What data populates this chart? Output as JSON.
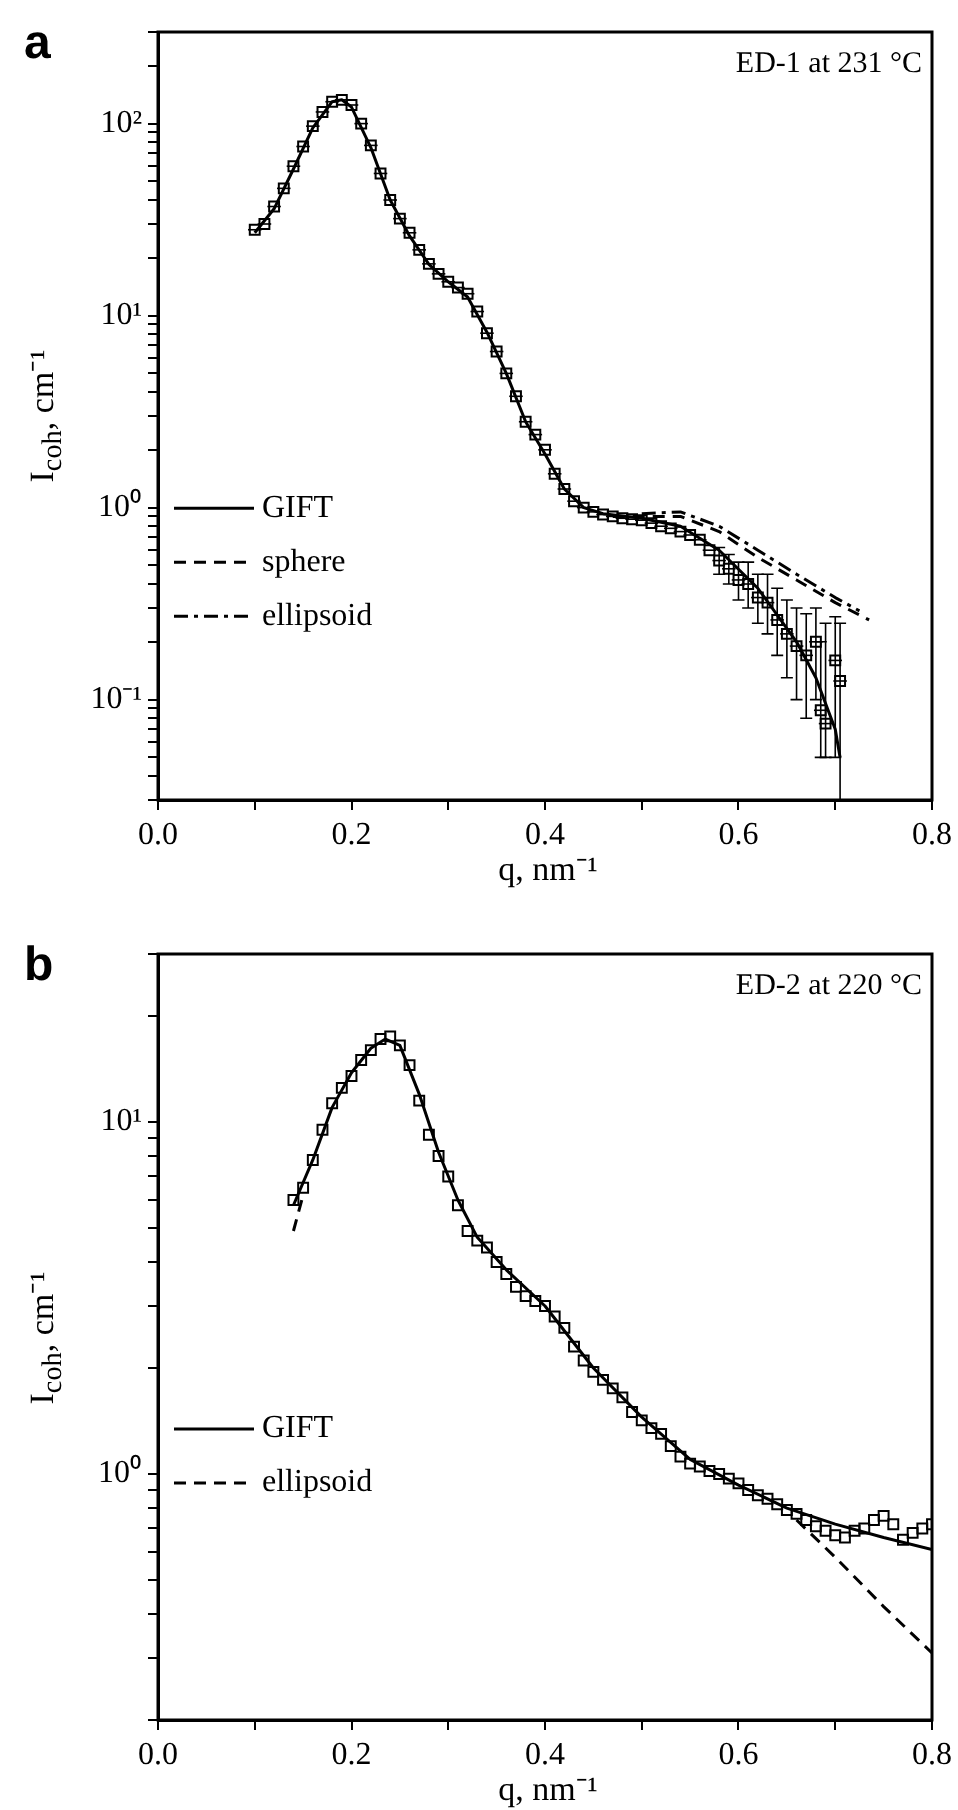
{
  "chart_data": [
    {
      "type": "scatter",
      "title": "a",
      "annotations": [
        "ED-1 at 231 °C"
      ],
      "xlabel": "q, nm⁻¹",
      "ylabel": "I$_{coh}$, cm⁻¹",
      "xlim": [
        0,
        0.8
      ],
      "xticks": [
        {
          "value": 0,
          "label": "0.0"
        },
        {
          "value": 0.1,
          "label": null
        },
        0.2,
        {
          "value": 0.3,
          "label": null
        },
        0.4,
        {
          "value": 0.5,
          "label": null
        },
        0.6,
        {
          "value": 0.7,
          "label": null
        },
        0.8
      ],
      "ylim": [
        0.03,
        300
      ],
      "log": true,
      "yticks": [
        {
          "value": 0.03,
          "label": null
        },
        {
          "value": 0.04,
          "label": null
        },
        {
          "value": 0.05,
          "label": null
        },
        {
          "value": 0.06,
          "label": null
        },
        {
          "value": 0.07,
          "label": null
        },
        {
          "value": 0.08,
          "label": null
        },
        {
          "value": 0.09,
          "label": null
        },
        {
          "value": 0.1,
          "label": "10⁻¹"
        },
        {
          "value": 0.2,
          "label": null
        },
        {
          "value": 0.3,
          "label": null
        },
        {
          "value": 0.4,
          "label": null
        },
        {
          "value": 0.5,
          "label": null
        },
        {
          "value": 0.6,
          "label": null
        },
        {
          "value": 0.7,
          "label": null
        },
        {
          "value": 0.8,
          "label": null
        },
        {
          "value": 0.9,
          "label": null
        },
        {
          "value": 1,
          "label": "10⁰"
        },
        {
          "value": 2,
          "label": null
        },
        {
          "value": 3,
          "label": null
        },
        {
          "value": 4,
          "label": null
        },
        {
          "value": 5,
          "label": null
        },
        {
          "value": 6,
          "label": null
        },
        {
          "value": 7,
          "label": null
        },
        {
          "value": 8,
          "label": null
        },
        {
          "value": 9,
          "label": null
        },
        {
          "value": 10,
          "label": "10¹"
        },
        {
          "value": 20,
          "label": null
        },
        {
          "value": 30,
          "label": null
        },
        {
          "value": 40,
          "label": null
        },
        {
          "value": 50,
          "label": null
        },
        {
          "value": 60,
          "label": null
        },
        {
          "value": 70,
          "label": null
        },
        {
          "value": 80,
          "label": null
        },
        {
          "value": 90,
          "label": null
        },
        {
          "value": 100,
          "label": "10²"
        },
        {
          "value": 200,
          "label": null
        },
        {
          "value": 300,
          "label": null
        }
      ],
      "grid": false,
      "legend": "left",
      "series": [
        {
          "type": "scatter",
          "marker": "square",
          "color": "#000000",
          "x": [
            0.1,
            0.11,
            0.12,
            0.13,
            0.14,
            0.15,
            0.16,
            0.17,
            0.18,
            0.19,
            0.2,
            0.21,
            0.22,
            0.23,
            0.24,
            0.25,
            0.26,
            0.27,
            0.28,
            0.29,
            0.3,
            0.31,
            0.32,
            0.33,
            0.34,
            0.35,
            0.36,
            0.37,
            0.38,
            0.39,
            0.4,
            0.41,
            0.42,
            0.43,
            0.44,
            0.45,
            0.46,
            0.47,
            0.48,
            0.49,
            0.5,
            0.51,
            0.52,
            0.53,
            0.54,
            0.55,
            0.56,
            0.57,
            0.58,
            0.59,
            0.6,
            0.61,
            0.62,
            0.63,
            0.64,
            0.65,
            0.66,
            0.67,
            0.68,
            0.685,
            0.69,
            0.7,
            0.705
          ],
          "values": [
            28,
            30,
            37,
            46,
            60,
            76,
            97,
            115,
            130,
            133,
            125,
            100,
            77,
            55,
            40,
            32,
            27,
            22,
            18.6,
            16.5,
            15,
            14,
            13,
            10.5,
            8.1,
            6.5,
            5,
            3.8,
            2.8,
            2.4,
            2.0,
            1.5,
            1.25,
            1.08,
            1.0,
            0.95,
            0.92,
            0.9,
            0.88,
            0.87,
            0.86,
            0.83,
            0.8,
            0.78,
            0.75,
            0.72,
            0.68,
            0.6,
            0.53,
            0.48,
            0.42,
            0.4,
            0.34,
            0.32,
            0.26,
            0.22,
            0.19,
            0.17,
            0.2,
            0.088,
            0.075,
            0.16,
            0.125
          ],
          "errors": [
            null,
            null,
            null,
            null,
            null,
            null,
            null,
            null,
            null,
            null,
            null,
            null,
            null,
            null,
            null,
            null,
            null,
            null,
            null,
            null,
            null,
            null,
            null,
            null,
            null,
            null,
            null,
            null,
            null,
            null,
            null,
            null,
            null,
            null,
            null,
            null,
            null,
            null,
            null,
            null,
            null,
            null,
            null,
            null,
            null,
            null,
            null,
            null,
            [
              0.45,
              0.62
            ],
            [
              0.4,
              0.57
            ],
            [
              0.33,
              0.52
            ],
            [
              0.3,
              0.52
            ],
            [
              0.25,
              0.45
            ],
            [
              0.22,
              0.45
            ],
            [
              0.17,
              0.38
            ],
            [
              0.13,
              0.33
            ],
            [
              0.1,
              0.3
            ],
            [
              0.08,
              0.28
            ],
            [
              0.1,
              0.3
            ],
            [
              0.05,
              0.2
            ],
            [
              0.05,
              0.25
            ],
            [
              0.05,
              0.27
            ],
            [
              0.03,
              0.25
            ]
          ],
          "xerrors": [
            0.007,
            0.007,
            0.007,
            0.007,
            0.007,
            0.007,
            0.007,
            0.007,
            0.007,
            0.007,
            0.007,
            0.007,
            0.007,
            0.007,
            0.007,
            0.007,
            0.007,
            0.007,
            0.007,
            0.007,
            0.007,
            0.007,
            0.007,
            0.007,
            0.007,
            0.007,
            0.007,
            0.007,
            0.007,
            0.007,
            0.007,
            0.007,
            0.007,
            0.007,
            0.007,
            0.007,
            0.007,
            0.007,
            0.007,
            0.007,
            0.007,
            0.007,
            0.007,
            0.007,
            0.007,
            0.007,
            0.007,
            0.007,
            0.007,
            0.007,
            0.007,
            0.007,
            0.007,
            0.007,
            0.007,
            0.007,
            0.007,
            0.007,
            0.007,
            0.007,
            0.007,
            0.007,
            0.007
          ]
        },
        {
          "type": "line",
          "name": "GIFT",
          "color": "#000000",
          "line_style": "solid",
          "marker": "none",
          "x": [
            0.1,
            0.12,
            0.14,
            0.16,
            0.18,
            0.19,
            0.2,
            0.22,
            0.24,
            0.26,
            0.28,
            0.3,
            0.32,
            0.34,
            0.36,
            0.38,
            0.4,
            0.42,
            0.44,
            0.46,
            0.5,
            0.54,
            0.58,
            0.62,
            0.66,
            0.68,
            0.7,
            0.705
          ],
          "values": [
            27,
            36,
            58,
            95,
            130,
            133,
            122,
            75,
            40,
            26,
            18.5,
            15,
            12.5,
            8.2,
            5,
            2.8,
            1.9,
            1.25,
            1.0,
            0.93,
            0.88,
            0.8,
            0.6,
            0.38,
            0.2,
            0.13,
            0.07,
            0.05
          ]
        },
        {
          "type": "line",
          "name": "sphere",
          "color": "#000000",
          "line_style": "dashed",
          "marker": "none",
          "x": [
            0.47,
            0.5,
            0.54,
            0.58,
            0.62,
            0.66,
            0.7,
            0.735
          ],
          "values": [
            0.9,
            0.9,
            0.9,
            0.75,
            0.55,
            0.42,
            0.32,
            0.26
          ]
        },
        {
          "type": "line",
          "name": "ellipsoid",
          "color": "#000000",
          "line_style": "dashdot",
          "marker": "none",
          "x": [
            0.5,
            0.54,
            0.58,
            0.62,
            0.66,
            0.7,
            0.725
          ],
          "values": [
            0.93,
            0.95,
            0.8,
            0.6,
            0.45,
            0.34,
            0.29
          ]
        }
      ]
    },
    {
      "type": "scatter",
      "title": "b",
      "annotations": [
        "ED-2 at 220 °C"
      ],
      "xlabel": "q, nm⁻¹",
      "ylabel": "I$_{coh}$, cm⁻¹",
      "xlim": [
        0,
        0.8
      ],
      "xticks": [
        {
          "value": 0,
          "label": "0.0"
        },
        {
          "value": 0.1,
          "label": null
        },
        0.2,
        {
          "value": 0.3,
          "label": null
        },
        0.4,
        {
          "value": 0.5,
          "label": null
        },
        0.6,
        {
          "value": 0.7,
          "label": null
        },
        0.8
      ],
      "ylim": [
        0.2,
        30
      ],
      "log": true,
      "yticks": [
        {
          "value": 0.2,
          "label": null
        },
        {
          "value": 0.3,
          "label": null
        },
        {
          "value": 0.4,
          "label": null
        },
        {
          "value": 0.5,
          "label": null
        },
        {
          "value": 0.6,
          "label": null
        },
        {
          "value": 0.7,
          "label": null
        },
        {
          "value": 0.8,
          "label": null
        },
        {
          "value": 0.9,
          "label": null
        },
        {
          "value": 1,
          "label": "10⁰"
        },
        {
          "value": 2,
          "label": null
        },
        {
          "value": 3,
          "label": null
        },
        {
          "value": 4,
          "label": null
        },
        {
          "value": 5,
          "label": null
        },
        {
          "value": 6,
          "label": null
        },
        {
          "value": 7,
          "label": null
        },
        {
          "value": 8,
          "label": null
        },
        {
          "value": 9,
          "label": null
        },
        {
          "value": 10,
          "label": "10¹"
        },
        {
          "value": 20,
          "label": null
        },
        {
          "value": 30,
          "label": null
        }
      ],
      "grid": false,
      "legend": "left",
      "series": [
        {
          "type": "scatter",
          "marker": "square",
          "color": "#000000",
          "x": [
            0.14,
            0.15,
            0.16,
            0.17,
            0.18,
            0.19,
            0.2,
            0.21,
            0.22,
            0.23,
            0.24,
            0.25,
            0.26,
            0.27,
            0.28,
            0.29,
            0.3,
            0.31,
            0.32,
            0.33,
            0.34,
            0.35,
            0.36,
            0.37,
            0.38,
            0.39,
            0.4,
            0.41,
            0.42,
            0.43,
            0.44,
            0.45,
            0.46,
            0.47,
            0.48,
            0.49,
            0.5,
            0.51,
            0.52,
            0.53,
            0.54,
            0.55,
            0.56,
            0.57,
            0.58,
            0.59,
            0.6,
            0.61,
            0.62,
            0.63,
            0.64,
            0.65,
            0.66,
            0.67,
            0.68,
            0.69,
            0.7,
            0.71,
            0.72,
            0.73,
            0.74,
            0.75,
            0.76,
            0.77,
            0.78,
            0.79,
            0.8
          ],
          "values": [
            6.0,
            6.5,
            7.8,
            9.5,
            11.3,
            12.5,
            13.5,
            15,
            16,
            17.2,
            17.5,
            16.5,
            14.5,
            11.5,
            9.2,
            8,
            7,
            5.8,
            4.9,
            4.6,
            4.4,
            4.0,
            3.7,
            3.4,
            3.2,
            3.1,
            3.0,
            2.8,
            2.6,
            2.3,
            2.1,
            1.95,
            1.85,
            1.75,
            1.65,
            1.5,
            1.42,
            1.35,
            1.3,
            1.2,
            1.12,
            1.07,
            1.05,
            1.02,
            1.0,
            0.97,
            0.94,
            0.9,
            0.87,
            0.85,
            0.82,
            0.79,
            0.77,
            0.74,
            0.71,
            0.69,
            0.67,
            0.66,
            0.69,
            0.7,
            0.74,
            0.76,
            0.72,
            0.65,
            0.68,
            0.7,
            0.72
          ]
        },
        {
          "type": "line",
          "name": "GIFT",
          "color": "#000000",
          "line_style": "solid",
          "marker": "none",
          "x": [
            0.14,
            0.16,
            0.18,
            0.2,
            0.22,
            0.235,
            0.25,
            0.27,
            0.29,
            0.31,
            0.33,
            0.36,
            0.4,
            0.45,
            0.5,
            0.55,
            0.6,
            0.65,
            0.7,
            0.75,
            0.8
          ],
          "values": [
            5.8,
            7.8,
            11,
            13.8,
            16.2,
            17.2,
            16.5,
            12,
            8.2,
            6,
            4.7,
            3.8,
            3.0,
            2.0,
            1.45,
            1.1,
            0.93,
            0.8,
            0.72,
            0.66,
            0.61
          ]
        },
        {
          "type": "line",
          "name": "ellipsoid",
          "color": "#000000",
          "line_style": "dashed",
          "marker": "none",
          "x": [
            0.14,
            0.15,
            0.16,
            0.66,
            0.7,
            0.75,
            0.8
          ],
          "values": [
            4.9,
            6.2,
            null,
            0.74,
            0.58,
            0.42,
            0.31
          ]
        }
      ]
    }
  ]
}
